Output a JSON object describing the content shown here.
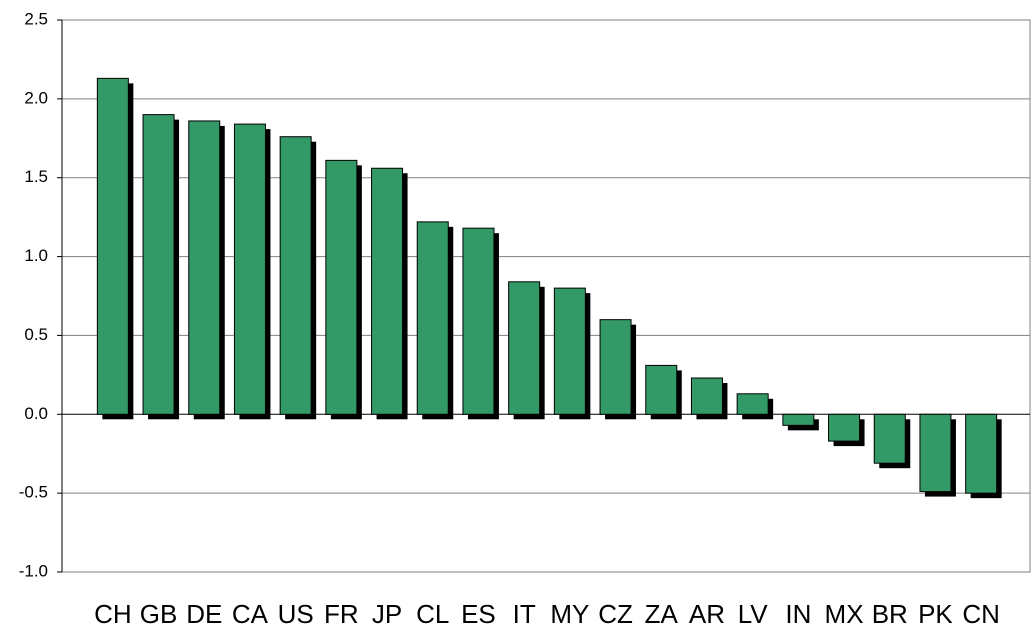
{
  "chart_data": {
    "type": "bar",
    "categories": [
      "CH",
      "GB",
      "DE",
      "CA",
      "US",
      "FR",
      "JP",
      "CL",
      "ES",
      "IT",
      "MY",
      "CZ",
      "ZA",
      "AR",
      "LV",
      "IN",
      "MX",
      "BR",
      "PK",
      "CN"
    ],
    "values": [
      2.13,
      1.9,
      1.86,
      1.84,
      1.76,
      1.61,
      1.56,
      1.22,
      1.18,
      0.84,
      0.8,
      0.6,
      0.31,
      0.23,
      0.13,
      -0.07,
      -0.17,
      -0.31,
      -0.49,
      -0.5
    ],
    "color": "#339966",
    "ylim": [
      -1,
      2.5
    ],
    "yticks": [
      {
        "value": -1,
        "label": "-1.0"
      },
      -0.5,
      {
        "value": 0,
        "label": "0.0"
      },
      0.5,
      {
        "value": 1,
        "label": "1.0"
      },
      1.5,
      {
        "value": 2,
        "label": "2.0"
      },
      2.5
    ],
    "grid": true
  }
}
